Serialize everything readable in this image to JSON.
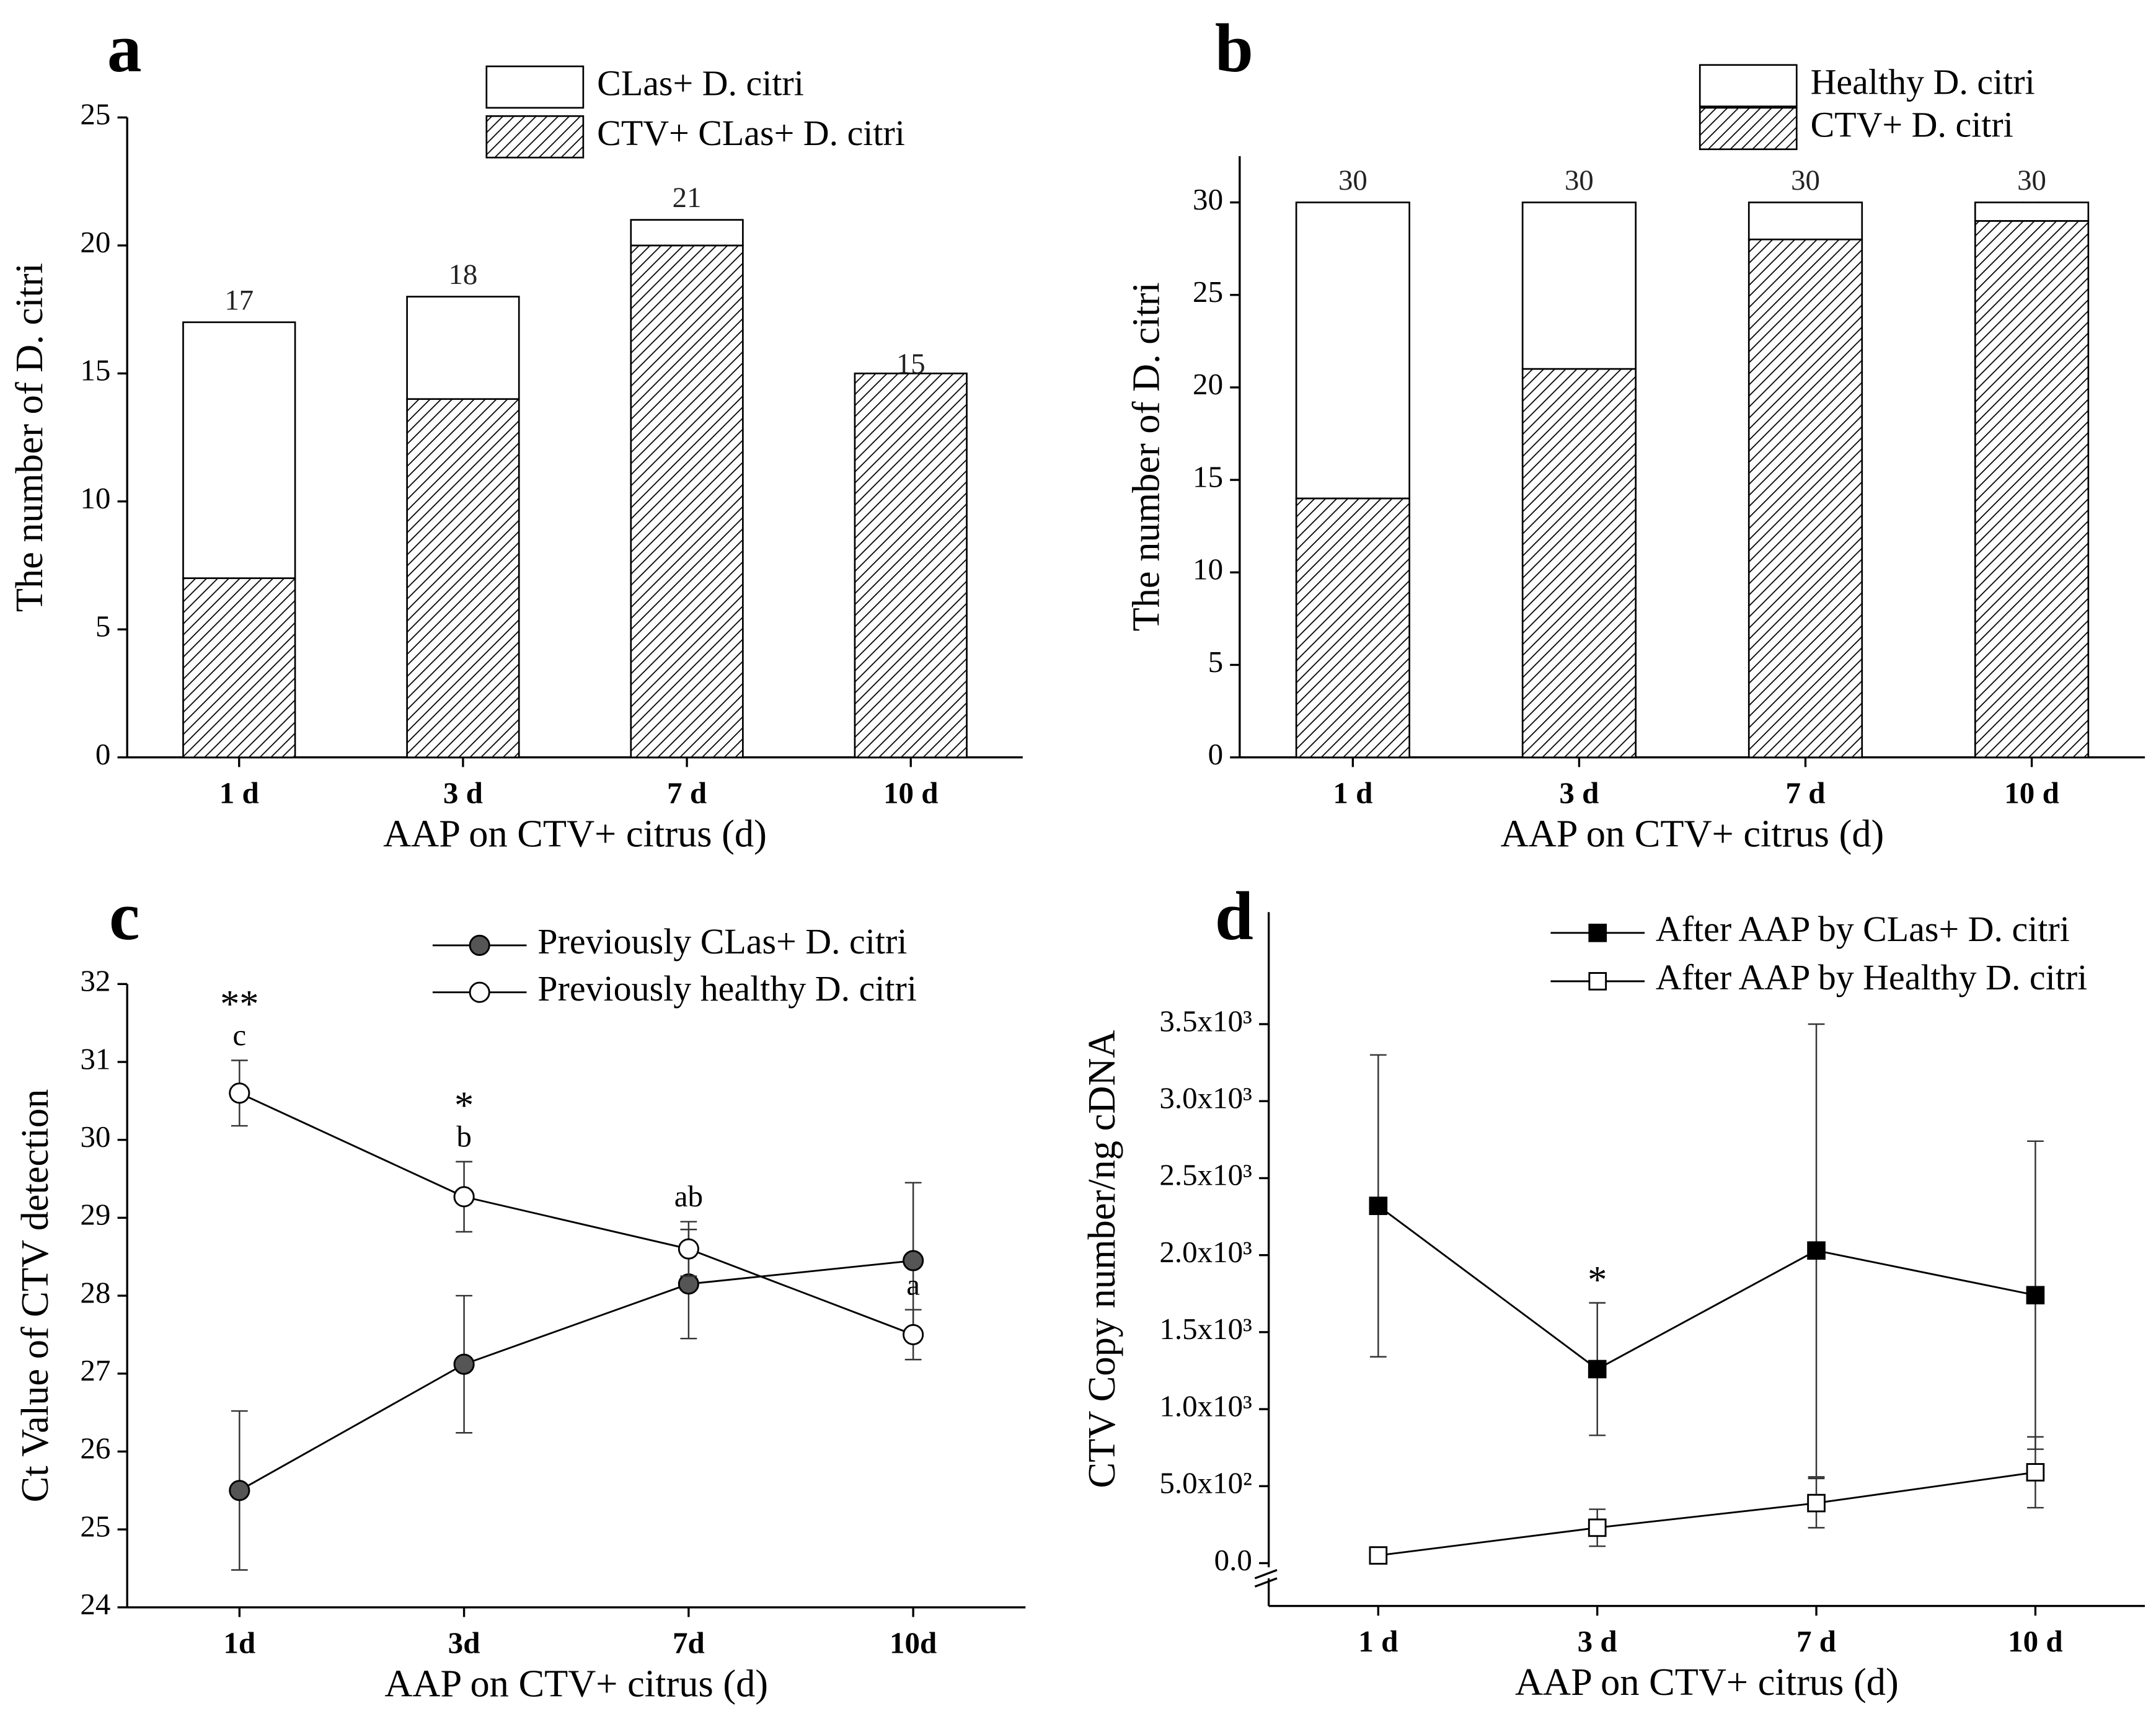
{
  "chart_data": [
    {
      "type": "bar",
      "title": "a",
      "xlabel": "AAP on CTV+ citrus (d)",
      "ylabel": "The number of D. citri",
      "categories": [
        "1 d",
        "3 d",
        "7 d",
        "10 d"
      ],
      "series": [
        {
          "name": "CTV+ CLas+ D. citri",
          "color": "#ffffff",
          "pattern": "hatch",
          "show_values": true,
          "values": [
            7,
            14,
            20,
            15
          ]
        },
        {
          "name": "CLas+ D. citri",
          "color": "#ffffff",
          "values": [
            10,
            4,
            1,
            0
          ]
        }
      ],
      "totals": [
        17,
        18,
        21,
        null
      ],
      "ylim": [
        0,
        25
      ],
      "yticks": [
        0,
        5,
        10,
        15,
        20,
        25
      ],
      "legend": "top-right"
    },
    {
      "type": "bar",
      "title": "b",
      "xlabel": "AAP on CTV+ citrus (d)",
      "ylabel": "The number of D. citri",
      "categories": [
        "1 d",
        "3 d",
        "7 d",
        "10 d"
      ],
      "series": [
        {
          "name": "CTV+ D. citri",
          "color": "#ffffff",
          "pattern": "hatch",
          "show_values": true,
          "values": [
            14,
            21,
            28,
            29
          ]
        },
        {
          "name": "Healthy D. citri",
          "color": "#ffffff",
          "values": [
            16,
            9,
            2,
            1
          ]
        }
      ],
      "totals": [
        30,
        30,
        30,
        30
      ],
      "ylim": [
        0,
        32.5
      ],
      "yticks": [
        0,
        5,
        10,
        15,
        20,
        25,
        30
      ],
      "legend": "top-right"
    },
    {
      "type": "line",
      "title": "c",
      "xlabel": "AAP on CTV+ citrus (d)",
      "ylabel": "Ct Value of CTV detection",
      "categories": [
        "1d",
        "3d",
        "7d",
        "10d"
      ],
      "series": [
        {
          "name": "Previously CLas+ D. citri",
          "color": "#000000",
          "marker": "circle",
          "fill": "#555555",
          "values": [
            25.5,
            27.12,
            28.15,
            28.45
          ],
          "errors": [
            1.02,
            0.88,
            0.7,
            1.0
          ]
        },
        {
          "name": "Previously healthy D. citri",
          "color": "#000000",
          "marker": "circle",
          "fill": "#ffffff",
          "values": [
            30.6,
            29.27,
            28.6,
            27.5
          ],
          "errors": [
            0.42,
            0.45,
            0.35,
            0.32
          ],
          "letters": [
            "c",
            "b",
            "ab",
            "a"
          ],
          "significance": [
            "**",
            "*",
            null,
            null
          ]
        }
      ],
      "ylim": [
        24,
        32
      ],
      "yticks": [
        24,
        25,
        26,
        27,
        28,
        29,
        30,
        31,
        32
      ],
      "legend": "top-right"
    },
    {
      "type": "line",
      "title": "d",
      "xlabel": "AAP on CTV+ citrus (d)",
      "ylabel": "CTV Copy number/ng cDNA",
      "categories": [
        "1 d",
        "3 d",
        "7 d",
        "10 d"
      ],
      "series": [
        {
          "name": "After AAP by CLas+ D. citri",
          "color": "#000000",
          "marker": "square",
          "fill": "#000000",
          "values": [
            2320,
            1260,
            2030,
            1740
          ],
          "errors": [
            980,
            430,
            1470,
            1000
          ],
          "significance": [
            null,
            "*",
            null,
            null
          ]
        },
        {
          "name": "After AAP by Healthy D. citri",
          "color": "#000000",
          "marker": "square",
          "fill": "#ffffff",
          "values": [
            50,
            230,
            390,
            590
          ],
          "errors": [
            20,
            120,
            160,
            230
          ]
        }
      ],
      "ylim": [
        -278,
        4227
      ],
      "yticks": [
        {
          "value": 0,
          "label": "0.0"
        },
        {
          "value": 500,
          "label": "5.0x10²"
        },
        {
          "value": 1000,
          "label": "1.0x10³"
        },
        {
          "value": 1500,
          "label": "1.5x10³"
        },
        {
          "value": 2000,
          "label": "2.0x10³"
        },
        {
          "value": 2500,
          "label": "2.5x10³"
        },
        {
          "value": 3000,
          "label": "3.0x10³"
        },
        {
          "value": 3500,
          "label": "3.5x10³"
        }
      ],
      "axis_break": true,
      "legend": "top-right"
    }
  ]
}
